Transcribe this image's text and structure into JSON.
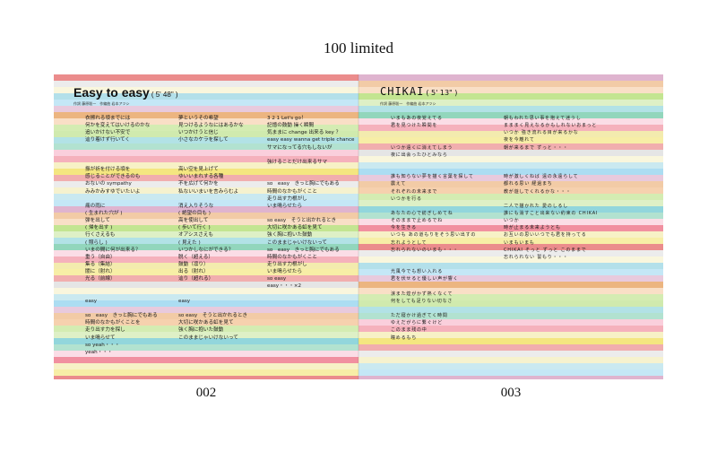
{
  "header": {
    "title": "100 limited"
  },
  "pages": {
    "left_number": "002",
    "right_number": "003"
  },
  "song_left": {
    "title": "Easy to easy",
    "duration": "( 5' 48\" )",
    "credits": "作詞 藤原聡一　作編曲 岩本アツシ",
    "columns": [
      [
        "",
        "",
        "",
        "",
        "",
        "",
        "",
        "",
        "",
        "",
        "",
        "",
        "",
        "",
        "",
        "",
        "",
        "",
        "",
        "",
        "",
        "",
        "",
        "",
        "",
        "",
        "",
        "",
        "",
        "",
        "",
        "",
        "",
        "",
        "",
        "",
        "",
        "",
        "",
        ""
      ],
      [
        "",
        "",
        "",
        "",
        "",
        "",
        "",
        "",
        "",
        "",
        "",
        "",
        "",
        "",
        "",
        "",
        "",
        "",
        "",
        "",
        "",
        "",
        "",
        "",
        "",
        "",
        "",
        "",
        "",
        "",
        "",
        "",
        "",
        "",
        "",
        "",
        "",
        "",
        "",
        ""
      ],
      [
        "",
        "",
        "",
        "",
        "",
        "",
        "",
        "",
        "",
        "",
        "",
        "",
        "",
        "",
        "",
        "",
        "",
        "",
        "",
        "",
        "",
        "",
        "",
        "",
        "",
        "",
        "",
        "",
        "",
        "",
        "",
        "",
        "",
        "",
        "",
        "",
        "",
        "",
        "",
        ""
      ]
    ],
    "lines": [
      {
        "col": 0,
        "row": 0,
        "text": "衣擦れる頃までには"
      },
      {
        "col": 0,
        "row": 1,
        "text": "何かを変えてはいけるのかな"
      },
      {
        "col": 0,
        "row": 2,
        "text": "追いかけない不安で"
      },
      {
        "col": 0,
        "row": 3,
        "text": "辿り着けず行いてく"
      },
      {
        "col": 0,
        "row": 7,
        "text": "振が祈を付ける頃を"
      },
      {
        "col": 0,
        "row": 8,
        "text": "感じることができるのも"
      },
      {
        "col": 0,
        "row": 9,
        "text": "おないの sympathy"
      },
      {
        "col": 0,
        "row": 10,
        "text": "みみかみすゆでいたいよ"
      },
      {
        "col": 0,
        "row": 12,
        "text": "痛の雨に"
      },
      {
        "col": 0,
        "row": 13,
        "text": "( 生まれた穴が )"
      },
      {
        "col": 0,
        "row": 14,
        "text": "弾を出して"
      },
      {
        "col": 0,
        "row": 15,
        "text": "( 帰を出す )"
      },
      {
        "col": 0,
        "row": 16,
        "text": "行くさえるも"
      },
      {
        "col": 0,
        "row": 17,
        "text": "( 照らし )"
      },
      {
        "col": 0,
        "row": 18,
        "text": "いまの間に何が出来る？"
      },
      {
        "col": 0,
        "row": 19,
        "text": "重う（自由）"
      },
      {
        "col": 0,
        "row": 20,
        "text": "集る（集結）"
      },
      {
        "col": 0,
        "row": 21,
        "text": "闇に（射れ）"
      },
      {
        "col": 0,
        "row": 22,
        "text": "光る（前線）"
      },
      {
        "col": 0,
        "row": 25,
        "text": "easy"
      },
      {
        "col": 0,
        "row": 27,
        "text": "so　easy　きっと胸にでもある"
      },
      {
        "col": 0,
        "row": 28,
        "text": "時間のなかもがくことを"
      },
      {
        "col": 0,
        "row": 29,
        "text": "走り出す力を探し"
      },
      {
        "col": 0,
        "row": 30,
        "text": "いま鳴らせて"
      },
      {
        "col": 0,
        "row": 31,
        "text": "so yeah・・・"
      },
      {
        "col": 0,
        "row": 32,
        "text": "yeah・・・"
      },
      {
        "col": 1,
        "row": 0,
        "text": "夢というその希望"
      },
      {
        "col": 1,
        "row": 1,
        "text": "見つけるようなにはあるかな"
      },
      {
        "col": 1,
        "row": 2,
        "text": "いつかけうと信じ"
      },
      {
        "col": 1,
        "row": 3,
        "text": "小さなカケラを探して"
      },
      {
        "col": 1,
        "row": 7,
        "text": "高い空を見上げて"
      },
      {
        "col": 1,
        "row": 8,
        "text": "ゆいいまれする各種"
      },
      {
        "col": 1,
        "row": 9,
        "text": "不を広げて何かを"
      },
      {
        "col": 1,
        "row": 10,
        "text": "私ないいまいを言みらむよ"
      },
      {
        "col": 1,
        "row": 12,
        "text": "消え入りそうな"
      },
      {
        "col": 1,
        "row": 13,
        "text": "( 絶望の目も )"
      },
      {
        "col": 1,
        "row": 14,
        "text": "高を使出して"
      },
      {
        "col": 1,
        "row": 15,
        "text": "( 歩いて行く )"
      },
      {
        "col": 1,
        "row": 16,
        "text": "オアシスさえも"
      },
      {
        "col": 1,
        "row": 17,
        "text": "( 見えた )"
      },
      {
        "col": 1,
        "row": 18,
        "text": "いつかしなにができる？"
      },
      {
        "col": 1,
        "row": 19,
        "text": "脱く（超える）"
      },
      {
        "col": 1,
        "row": 20,
        "text": "鼓動（凛り）"
      },
      {
        "col": 1,
        "row": 21,
        "text": "出る（射れ）"
      },
      {
        "col": 1,
        "row": 22,
        "text": "辿り（超れる）"
      },
      {
        "col": 1,
        "row": 25,
        "text": "easy"
      },
      {
        "col": 1,
        "row": 27,
        "text": "so easy　そうと出かれるとき"
      },
      {
        "col": 1,
        "row": 28,
        "text": "大切に咲かある虹を見て"
      },
      {
        "col": 1,
        "row": 29,
        "text": "強く胸に抱いた鼓動"
      },
      {
        "col": 1,
        "row": 30,
        "text": "このままじゃいけないって"
      },
      {
        "col": 2,
        "row": 0,
        "text": "3 2 1 Let's go！"
      },
      {
        "col": 2,
        "row": 1,
        "text": "記憶の鼓動 操く瞬間"
      },
      {
        "col": 2,
        "row": 2,
        "text": "気ままに change 出来る key ？"
      },
      {
        "col": 2,
        "row": 3,
        "text": "easy easy wanna get triple chance"
      },
      {
        "col": 2,
        "row": 4,
        "text": "サマになってる穴もしないが"
      },
      {
        "col": 2,
        "row": 6,
        "text": "強けることだけ出来るサマ"
      },
      {
        "col": 2,
        "row": 9,
        "text": "so　easy　きっと胸にでもある"
      },
      {
        "col": 2,
        "row": 10,
        "text": "時間のなかもがくこと"
      },
      {
        "col": 2,
        "row": 11,
        "text": "走り出す力根がし"
      },
      {
        "col": 2,
        "row": 12,
        "text": "いま鳴らせたら"
      },
      {
        "col": 2,
        "row": 14,
        "text": "so easy　そうと出かれるとき"
      },
      {
        "col": 2,
        "row": 15,
        "text": "大切に咲かある虹を見て"
      },
      {
        "col": 2,
        "row": 16,
        "text": "強く胸に抱いた鼓動"
      },
      {
        "col": 2,
        "row": 17,
        "text": "このままじゃいけないって"
      },
      {
        "col": 2,
        "row": 18,
        "text": "so　easy　きっと胸にでもある"
      },
      {
        "col": 2,
        "row": 19,
        "text": "時間のなかもがくこと"
      },
      {
        "col": 2,
        "row": 20,
        "text": "走り出す力根がし"
      },
      {
        "col": 2,
        "row": 21,
        "text": "いま鳴らせたら"
      },
      {
        "col": 2,
        "row": 22,
        "text": "so easy"
      },
      {
        "col": 2,
        "row": 23,
        "text": "easy・・・×2"
      }
    ]
  },
  "song_right": {
    "title": "CHIKAI",
    "duration": "( 5' 13\" )",
    "credits": "作詞 藤原聡一　作編曲 岩本アツシ",
    "lines": [
      {
        "col": 0,
        "row": 0,
        "text": "いまもあの夜覚えてる"
      },
      {
        "col": 0,
        "row": 1,
        "text": "君を見つけた瞬間を"
      },
      {
        "col": 0,
        "row": 4,
        "text": "いつか遠くに消えてしまう"
      },
      {
        "col": 0,
        "row": 5,
        "text": "夜に出会ったひとみなら"
      },
      {
        "col": 0,
        "row": 8,
        "text": "誰も知らない夢を描く言葉を探して"
      },
      {
        "col": 0,
        "row": 9,
        "text": "震えて"
      },
      {
        "col": 0,
        "row": 10,
        "text": "それぞれの未来まで"
      },
      {
        "col": 0,
        "row": 11,
        "text": "いつかを行る"
      },
      {
        "col": 0,
        "row": 13,
        "text": "あなたの心で紡ぎしめてね"
      },
      {
        "col": 0,
        "row": 14,
        "text": "そのままで止めるでね"
      },
      {
        "col": 0,
        "row": 15,
        "text": "今を生きる"
      },
      {
        "col": 0,
        "row": 16,
        "text": "いつも あの道もりをそう思い出すの"
      },
      {
        "col": 0,
        "row": 17,
        "text": "忘れようとして"
      },
      {
        "col": 0,
        "row": 18,
        "text": "忘れられないのいまも・・・"
      },
      {
        "col": 0,
        "row": 21,
        "text": "光風今でも想い入れる"
      },
      {
        "col": 0,
        "row": 22,
        "text": "君を伏せると優しい声が響く"
      },
      {
        "col": 0,
        "row": 24,
        "text": "涙また煌がかず熱くなくて"
      },
      {
        "col": 0,
        "row": 25,
        "text": "何をしても足りない切なさ"
      },
      {
        "col": 0,
        "row": 27,
        "text": "ただ寝かけ過ぎてく時間"
      },
      {
        "col": 0,
        "row": 28,
        "text": "ゆえだがらに繋ぐけど"
      },
      {
        "col": 0,
        "row": 29,
        "text": "このまま残の中"
      },
      {
        "col": 0,
        "row": 30,
        "text": "瞳めるもち"
      },
      {
        "col": 1,
        "row": 0,
        "text": "朝もわれた思い事を抱えて迷うし"
      },
      {
        "col": 1,
        "row": 1,
        "text": "まままく見えなるかもしれないおまっと"
      },
      {
        "col": 1,
        "row": 2,
        "text": "いつか 強き流れる目が来るかな"
      },
      {
        "col": 1,
        "row": 3,
        "text": "夜を今離れて"
      },
      {
        "col": 1,
        "row": 4,
        "text": "朝が来るまで ずっと・・・"
      },
      {
        "col": 1,
        "row": 8,
        "text": "時が激しくねば 遠の永遠らして"
      },
      {
        "col": 1,
        "row": 9,
        "text": "都れる思い 経過まち"
      },
      {
        "col": 1,
        "row": 10,
        "text": "教が遊しでくれるかな・・・"
      },
      {
        "col": 1,
        "row": 12,
        "text": "二人で描かれた 愛のしるし"
      },
      {
        "col": 1,
        "row": 13,
        "text": "誰にも消すこと出来ない約束の CHIKAI"
      },
      {
        "col": 1,
        "row": 14,
        "text": "いつか"
      },
      {
        "col": 1,
        "row": 15,
        "text": "時が止まる未来ようとも"
      },
      {
        "col": 1,
        "row": 16,
        "text": "お互いの思いいつでも君を持ってる"
      },
      {
        "col": 1,
        "row": 17,
        "text": "いまもいまも"
      },
      {
        "col": 1,
        "row": 18,
        "text": "CHIKAI そっと ずっと このままで"
      },
      {
        "col": 1,
        "row": 19,
        "text": "忘れられない 誓もり・・・"
      }
    ]
  },
  "colors": {
    "stripes": [
      "#e87878",
      "#f5c9a0",
      "#f1e8a0",
      "#d9a7c7",
      "#f9c7d6",
      "#a6dbe6",
      "#7fcfd6",
      "#e0e0e0",
      "#b8e07e",
      "#f2e26a",
      "#e9a86a",
      "#ee7d8f",
      "#9dd7f0",
      "#7fcfb0",
      "#f5f0c6",
      "#c8e6a0"
    ]
  }
}
